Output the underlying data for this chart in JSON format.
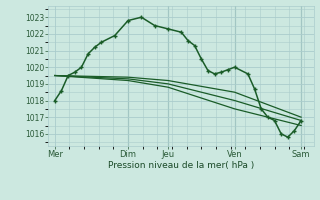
{
  "background_color": "#cce8e0",
  "grid_color": "#aacccc",
  "line_color": "#1a5c28",
  "title": "Pression niveau de la mer( hPa )",
  "ylim": [
    1015.3,
    1023.7
  ],
  "yticks": [
    1016,
    1017,
    1018,
    1019,
    1020,
    1021,
    1022,
    1023
  ],
  "x_day_labels": [
    "Mer",
    "Dim",
    "Jeu",
    "Ven",
    "Sam"
  ],
  "x_day_positions": [
    0,
    5.5,
    8.5,
    13.5,
    18.5
  ],
  "main_line": {
    "x": [
      0,
      0.5,
      1.0,
      1.5,
      2.0,
      2.5,
      3.0,
      3.5,
      4.5,
      5.5,
      6.5,
      7.5,
      8.5,
      9.5,
      10.0,
      10.5,
      11.0,
      11.5,
      12.0,
      12.5,
      13.0,
      13.5,
      14.5,
      15.0,
      15.5,
      16.0,
      16.5,
      17.0,
      17.5,
      18.0,
      18.5
    ],
    "y": [
      1018.0,
      1018.6,
      1019.5,
      1019.7,
      1020.0,
      1020.8,
      1021.2,
      1021.5,
      1021.9,
      1022.8,
      1023.0,
      1022.5,
      1022.3,
      1022.1,
      1021.6,
      1021.3,
      1020.5,
      1019.8,
      1019.6,
      1019.7,
      1019.85,
      1020.0,
      1019.6,
      1018.7,
      1017.5,
      1017.0,
      1016.8,
      1016.0,
      1015.8,
      1016.2,
      1016.8
    ]
  },
  "forecast_lines": [
    {
      "x": [
        0,
        5.5,
        8.5,
        13.5,
        18.5
      ],
      "y": [
        1019.5,
        1019.4,
        1019.2,
        1018.5,
        1017.0
      ]
    },
    {
      "x": [
        0,
        5.5,
        8.5,
        13.5,
        18.5
      ],
      "y": [
        1019.5,
        1019.3,
        1019.0,
        1018.0,
        1016.8
      ]
    },
    {
      "x": [
        0,
        5.5,
        8.5,
        13.5,
        18.5
      ],
      "y": [
        1019.5,
        1019.2,
        1018.8,
        1017.5,
        1016.5
      ]
    }
  ],
  "vlines_x": [
    5.5,
    8.5,
    13.5,
    18.5
  ],
  "xlim": [
    -0.5,
    19.5
  ],
  "ytick_fontsize": 5.5,
  "xtick_fontsize": 6.0,
  "title_fontsize": 6.5
}
